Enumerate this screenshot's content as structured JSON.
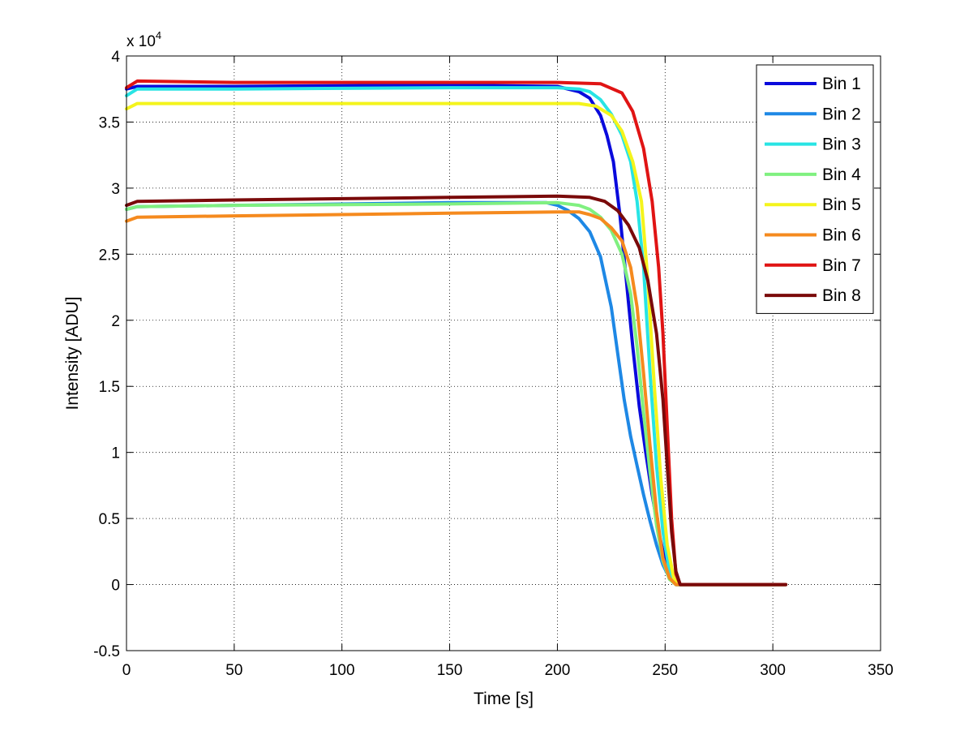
{
  "chart_data": {
    "type": "line",
    "title": "",
    "xlabel": "Time [s]",
    "ylabel": "Intensity [ADU]",
    "y_exponent_label": "x 10",
    "y_exponent_power": "4",
    "xlim": [
      0,
      350
    ],
    "ylim": [
      -0.5,
      4
    ],
    "x_ticks": [
      0,
      50,
      100,
      150,
      200,
      250,
      300,
      350
    ],
    "x_tick_labels": [
      "0",
      "50",
      "100",
      "150",
      "200",
      "250",
      "300",
      "350"
    ],
    "y_ticks": [
      -0.5,
      0,
      0.5,
      1,
      1.5,
      2,
      2.5,
      3,
      3.5,
      4
    ],
    "y_tick_labels": [
      "-0.5",
      "0",
      "0.5",
      "1",
      "1.5",
      "2",
      "2.5",
      "3",
      "3.5",
      "4"
    ],
    "grid": true,
    "grid_style": "dotted",
    "legend_position": "top-right",
    "y_units_scale": 10000,
    "series": [
      {
        "name": "Bin 1",
        "color": "#0a0adc",
        "x": [
          0,
          5,
          50,
          150,
          200,
          210,
          215,
          220,
          223,
          226,
          229,
          232,
          235,
          238,
          241,
          244,
          247,
          250,
          253,
          255,
          260,
          306
        ],
        "y": [
          3.75,
          3.77,
          3.77,
          3.78,
          3.77,
          3.73,
          3.68,
          3.55,
          3.4,
          3.2,
          2.8,
          2.3,
          1.8,
          1.35,
          1.0,
          0.68,
          0.4,
          0.18,
          0.05,
          0.0,
          0.0,
          0.0
        ]
      },
      {
        "name": "Bin 2",
        "color": "#1e88e5",
        "x": [
          0,
          5,
          50,
          150,
          195,
          200,
          205,
          210,
          215,
          220,
          225,
          228,
          231,
          234,
          237,
          240,
          243,
          246,
          249,
          252,
          255,
          260,
          306
        ],
        "y": [
          2.84,
          2.86,
          2.87,
          2.89,
          2.89,
          2.87,
          2.83,
          2.77,
          2.67,
          2.48,
          2.1,
          1.75,
          1.4,
          1.12,
          0.9,
          0.68,
          0.48,
          0.3,
          0.15,
          0.05,
          0.0,
          0.0,
          0.0
        ]
      },
      {
        "name": "Bin 3",
        "color": "#28e4e4",
        "x": [
          0,
          5,
          50,
          150,
          200,
          210,
          215,
          220,
          225,
          230,
          234,
          237,
          240,
          243,
          246,
          249,
          252,
          255,
          260,
          306
        ],
        "y": [
          3.7,
          3.75,
          3.75,
          3.76,
          3.76,
          3.75,
          3.73,
          3.67,
          3.56,
          3.4,
          3.2,
          2.9,
          2.4,
          1.6,
          0.9,
          0.4,
          0.1,
          0.0,
          0.0,
          0.0
        ]
      },
      {
        "name": "Bin 4",
        "color": "#80f080",
        "x": [
          0,
          5,
          50,
          150,
          200,
          210,
          215,
          220,
          225,
          230,
          234,
          237,
          240,
          243,
          246,
          249,
          252,
          255,
          260,
          306
        ],
        "y": [
          2.84,
          2.86,
          2.87,
          2.88,
          2.89,
          2.87,
          2.84,
          2.78,
          2.68,
          2.5,
          2.2,
          1.8,
          1.3,
          0.85,
          0.45,
          0.18,
          0.04,
          0.0,
          0.0,
          0.0
        ]
      },
      {
        "name": "Bin 5",
        "color": "#f4f41c",
        "x": [
          0,
          5,
          50,
          150,
          210,
          218,
          225,
          230,
          235,
          239,
          242,
          245,
          248,
          251,
          254,
          256,
          260,
          306
        ],
        "y": [
          3.6,
          3.64,
          3.64,
          3.64,
          3.64,
          3.62,
          3.55,
          3.43,
          3.2,
          2.9,
          2.3,
          1.5,
          0.8,
          0.3,
          0.05,
          0.0,
          0.0,
          0.0
        ]
      },
      {
        "name": "Bin 6",
        "color": "#f58a1e",
        "x": [
          0,
          5,
          50,
          150,
          200,
          210,
          215,
          220,
          225,
          230,
          234,
          237,
          240,
          243,
          246,
          249,
          252,
          255,
          260,
          306
        ],
        "y": [
          2.75,
          2.78,
          2.79,
          2.81,
          2.82,
          2.82,
          2.8,
          2.77,
          2.7,
          2.6,
          2.4,
          2.1,
          1.6,
          1.05,
          0.55,
          0.2,
          0.05,
          0.0,
          0.0,
          0.0
        ]
      },
      {
        "name": "Bin 7",
        "color": "#e01414",
        "x": [
          0,
          5,
          50,
          150,
          200,
          220,
          230,
          235,
          240,
          244,
          247,
          249,
          251,
          253,
          255,
          257,
          260,
          306
        ],
        "y": [
          3.76,
          3.81,
          3.8,
          3.8,
          3.8,
          3.79,
          3.72,
          3.58,
          3.3,
          2.9,
          2.4,
          1.9,
          1.2,
          0.5,
          0.08,
          0.0,
          0.0,
          0.0
        ]
      },
      {
        "name": "Bin 8",
        "color": "#7a0a0a",
        "x": [
          0,
          5,
          50,
          150,
          200,
          215,
          222,
          228,
          233,
          238,
          242,
          246,
          249,
          251,
          253,
          255,
          257,
          260,
          306
        ],
        "y": [
          2.87,
          2.9,
          2.91,
          2.93,
          2.94,
          2.93,
          2.9,
          2.83,
          2.72,
          2.55,
          2.3,
          1.9,
          1.4,
          0.9,
          0.4,
          0.1,
          0.0,
          0.0,
          0.0
        ]
      }
    ]
  }
}
